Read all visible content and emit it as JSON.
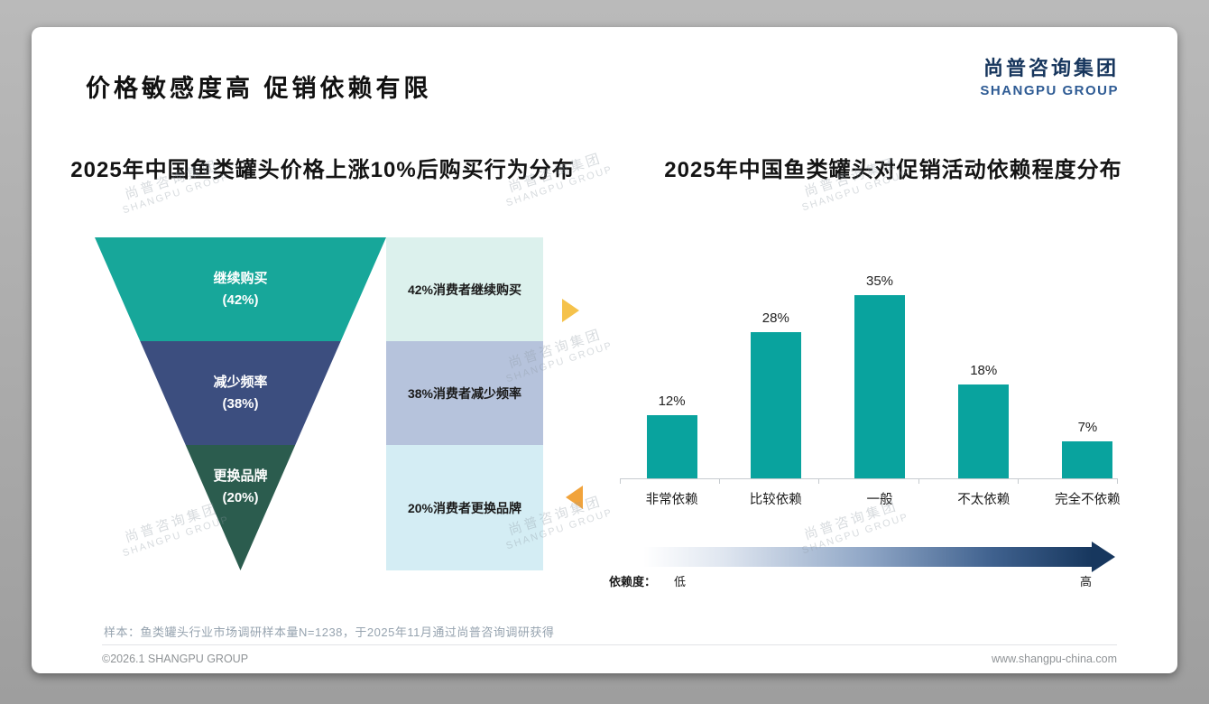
{
  "page": {
    "title": "价格敏感度高 促销依赖有限",
    "logo": {
      "cn": "尚普咨询集团",
      "en": "SHANGPU GROUP"
    },
    "note": "样本：鱼类罐头行业市场调研样本量N=1238，于2025年11月通过尚普咨询调研获得",
    "footer": {
      "left": "©2026.1 SHANGPU GROUP",
      "right": "www.shangpu-china.com"
    },
    "watermark": {
      "cn": "尚普咨询集团",
      "en": "SHANGPU GROUP"
    }
  },
  "colors": {
    "brand_blue": "#17365D",
    "bar_teal": "#09A39E",
    "funnel": [
      "#17A79A",
      "#3C4E7F",
      "#2B5C4E"
    ],
    "strips": [
      "#DCF1ED",
      "#B6C3DC",
      "#D4EDF4"
    ],
    "arrow_right": "#F5C24B",
    "arrow_left": "#F1A33B",
    "gradient_end": "#17375E"
  },
  "chart_data": [
    {
      "type": "funnel",
      "title": "2025年中国鱼类罐头价格上涨10%后购买行为分布",
      "levels": [
        {
          "name": "继续购买",
          "pct": "(42%)",
          "value": 42,
          "annotation": "42%消费者继续购买"
        },
        {
          "name": "减少频率",
          "pct": "(38%)",
          "value": 38,
          "annotation": "38%消费者减少频率"
        },
        {
          "name": "更换品牌",
          "pct": "(20%)",
          "value": 20,
          "annotation": "20%消费者更换品牌"
        }
      ]
    },
    {
      "type": "bar",
      "title": "2025年中国鱼类罐头对促销活动依赖程度分布",
      "categories": [
        "非常依赖",
        "比较依赖",
        "一般",
        "不太依赖",
        "完全不依赖"
      ],
      "values": [
        12,
        28,
        35,
        18,
        7
      ],
      "value_labels": [
        "12%",
        "28%",
        "35%",
        "18%",
        "7%"
      ],
      "ylim": [
        0,
        40
      ],
      "grid": false,
      "axis_note": {
        "label": "依赖度：",
        "low": "低",
        "high": "高"
      }
    }
  ]
}
